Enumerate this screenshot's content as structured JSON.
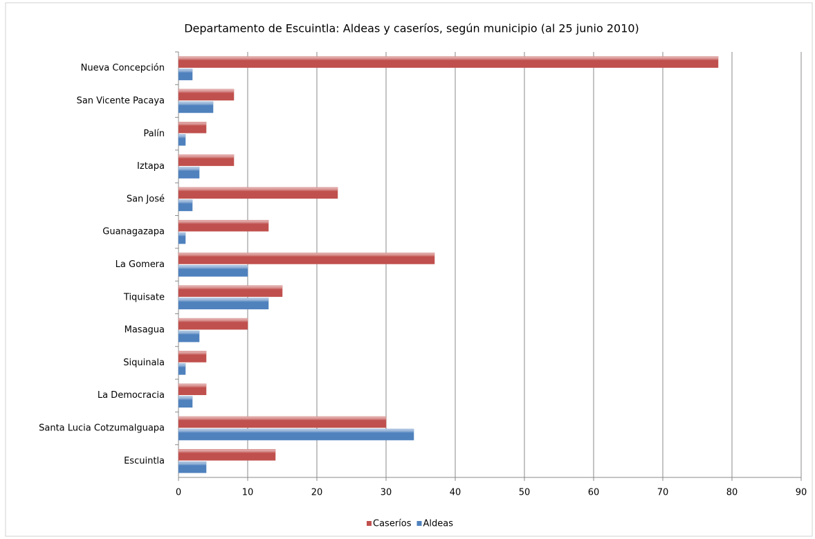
{
  "chart_data": {
    "type": "bar",
    "orientation": "horizontal",
    "title": "Departamento de Escuintla: Aldeas y caseríos, según municipio (al 25 junio 2010)",
    "categories": [
      "Nueva Concepción",
      "San Vicente Pacaya",
      "Palín",
      "Iztapa",
      "San José",
      "Guanagazapa",
      "La Gomera",
      "Tiquisate",
      "Masagua",
      "Siquinala",
      "La Democracia",
      "Santa Lucia Cotzumalguapa",
      "Escuintla"
    ],
    "series": [
      {
        "name": "Caseríos",
        "color": "#c0504d",
        "values": [
          78,
          8,
          4,
          8,
          23,
          13,
          37,
          15,
          10,
          4,
          4,
          30,
          14
        ]
      },
      {
        "name": "Aldeas",
        "color": "#4f81bd",
        "values": [
          2,
          5,
          1,
          3,
          2,
          1,
          10,
          13,
          3,
          1,
          2,
          34,
          4
        ]
      }
    ],
    "xlim": [
      0,
      90
    ],
    "xticks": [
      0,
      10,
      20,
      30,
      40,
      50,
      60,
      70,
      80,
      90
    ],
    "grid": true,
    "legend": "bottom"
  }
}
